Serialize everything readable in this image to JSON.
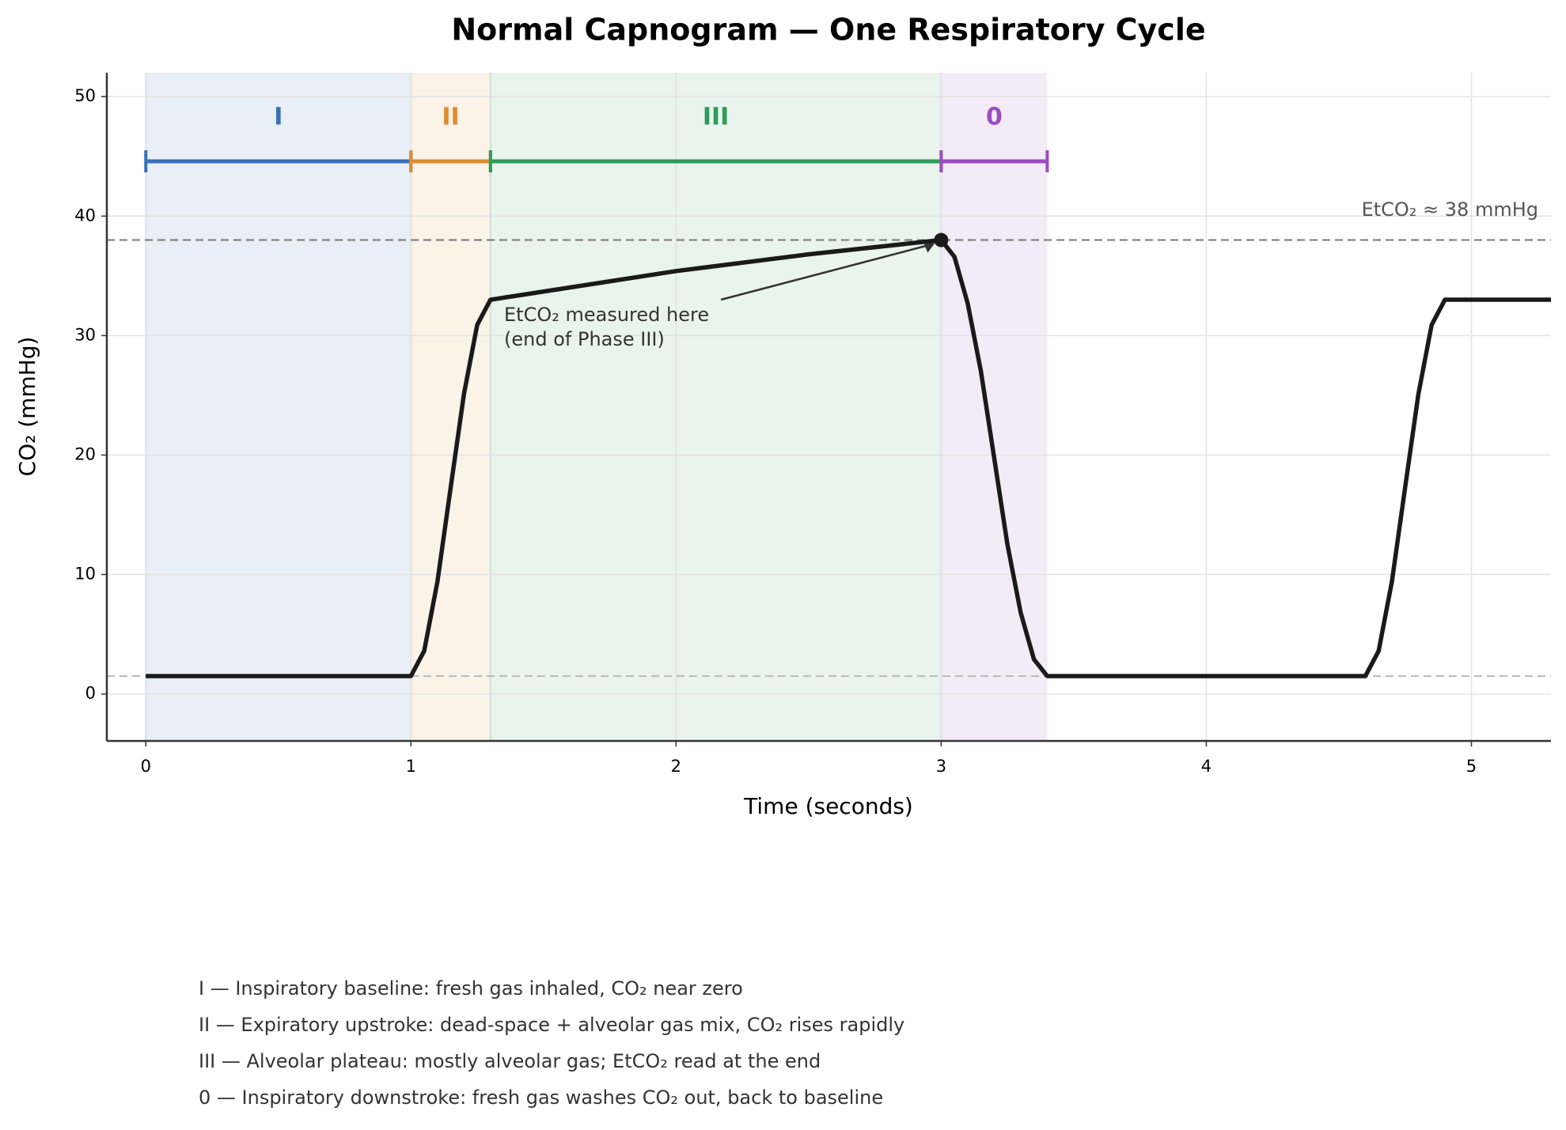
{
  "chart_data": {
    "type": "line",
    "title": "Normal Capnogram — One Respiratory Cycle",
    "x_label": "Time (seconds)",
    "y_label": "CO₂ (mmHg)",
    "x": [
      0,
      1.0,
      1.05,
      1.1,
      1.15,
      1.2,
      1.25,
      1.3,
      2.0,
      2.5,
      3.0,
      3.05,
      3.1,
      3.15,
      3.2,
      3.25,
      3.3,
      3.35,
      3.4,
      4.6,
      4.65,
      4.7,
      4.75,
      4.8,
      4.85,
      4.9,
      5.3
    ],
    "values": [
      1.5,
      1.5,
      3.6,
      9.4,
      17.3,
      25.1,
      30.9,
      33,
      35.4,
      36.8,
      38,
      36.6,
      32.7,
      27.0,
      19.75,
      12.5,
      6.8,
      2.9,
      1.5,
      1.5,
      3.6,
      9.4,
      17.3,
      25.1,
      30.9,
      33,
      33
    ],
    "color": "#1a1a1a",
    "xlim": [
      -0.147,
      5.3
    ],
    "ylim": [
      -3.93,
      52
    ],
    "xticks": [
      0,
      1,
      2,
      3,
      4,
      5
    ],
    "yticks": [
      0,
      10,
      20,
      30,
      40,
      50
    ],
    "grid": true,
    "phases": [
      {
        "label": "I",
        "start": 0,
        "end": 1,
        "color": "#3a6fb5"
      },
      {
        "label": "II",
        "start": 1,
        "end": 1.3,
        "color": "#de8c30"
      },
      {
        "label": "III",
        "start": 1.3,
        "end": 3,
        "color": "#2e9a5a"
      },
      {
        "label": "0",
        "start": 3,
        "end": 3.4,
        "color": "#9b4dbf"
      }
    ],
    "reference_lines": [
      {
        "value": 38,
        "color": "#777777"
      },
      {
        "value": 1.5,
        "color": "#bbbbbb"
      }
    ],
    "reference_label": "EtCO₂ ≈ 38 mmHg",
    "marker": {
      "x": 3,
      "y": 38
    },
    "annotation": [
      "EtCO₂ measured here",
      "(end of Phase III)"
    ],
    "notes": [
      "I — Inspiratory baseline: fresh gas inhaled, CO₂ near zero",
      "II — Expiratory upstroke: dead-space + alveolar gas mix, CO₂ rises rapidly",
      "III — Alveolar plateau: mostly alveolar gas; EtCO₂ read at the end",
      "0 — Inspiratory downstroke: fresh gas washes CO₂ out, back to baseline"
    ]
  }
}
